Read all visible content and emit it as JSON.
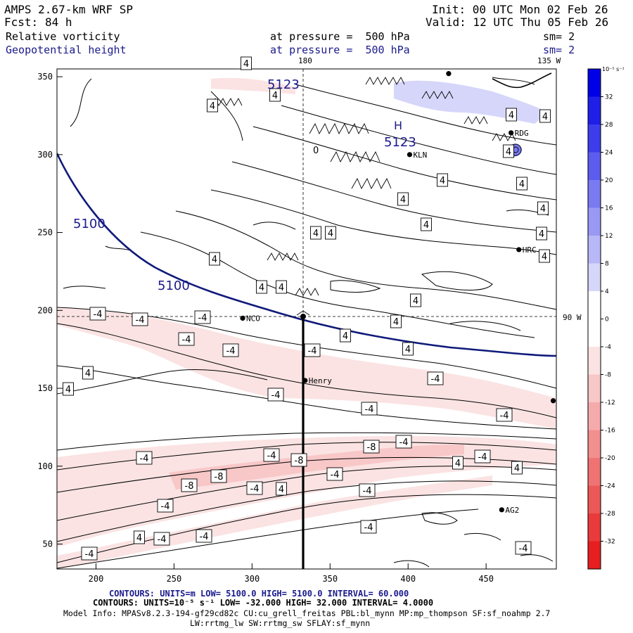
{
  "header": {
    "model": "AMPS 2.67-km WRF SP",
    "fcst_label": "Fcst:",
    "fcst_value": "84 h",
    "init": "Init: 00 UTC Mon 02 Feb 26",
    "valid": "Valid: 12 UTC Thu 05 Feb 26",
    "field1_name": "Relative vorticity",
    "field1_level": "at pressure =  500 hPa",
    "field1_smooth": "sm= 2",
    "field2_name": "Geopotential height",
    "field2_level": "at pressure =  500 hPa",
    "field2_smooth": "sm= 2"
  },
  "map": {
    "x_ticks": [
      "200",
      "250",
      "300",
      "350",
      "400",
      "450"
    ],
    "y_ticks": [
      "350",
      "300",
      "250",
      "200",
      "150",
      "100",
      "50"
    ],
    "meridian_labels": {
      "top_180": "180",
      "top_135w": "135 W",
      "right_90w": "90 W"
    },
    "stations": [
      {
        "name": "KLN",
        "x": 401,
        "y": 300
      },
      {
        "name": "RDG",
        "x": 466,
        "y": 314
      },
      {
        "name": "HRC",
        "x": 471,
        "y": 239
      },
      {
        "name": "NCO",
        "x": 294,
        "y": 195
      },
      {
        "name": "Henry",
        "x": 334,
        "y": 155
      },
      {
        "name": "AG2",
        "x": 460,
        "y": 72
      },
      {
        "name": "",
        "x": 426,
        "y": 352
      },
      {
        "name": "",
        "x": 493,
        "y": 142
      }
    ],
    "height_labels": [
      "5100",
      "5100",
      "5123",
      "5123"
    ],
    "height_high_marker": "H",
    "vorticity_zero_label": "0",
    "vort_boxes": [
      {
        "t": "4",
        "x": 350,
        "y": 90
      },
      {
        "t": "4",
        "x": 391,
        "y": 135
      },
      {
        "t": "4",
        "x": 302,
        "y": 150
      },
      {
        "t": "4",
        "x": 727,
        "y": 163
      },
      {
        "t": "4",
        "x": 775,
        "y": 165
      },
      {
        "t": "4",
        "x": 723,
        "y": 215
      },
      {
        "t": "4",
        "x": 629,
        "y": 256
      },
      {
        "t": "4",
        "x": 742,
        "y": 261
      },
      {
        "t": "4",
        "x": 573,
        "y": 283
      },
      {
        "t": "4",
        "x": 772,
        "y": 296
      },
      {
        "t": "4",
        "x": 606,
        "y": 319
      },
      {
        "t": "4",
        "x": 449,
        "y": 331
      },
      {
        "t": "4",
        "x": 470,
        "y": 331
      },
      {
        "t": "4",
        "x": 770,
        "y": 332
      },
      {
        "t": "4",
        "x": 305,
        "y": 368
      },
      {
        "t": "4",
        "x": 774,
        "y": 364
      },
      {
        "t": "4",
        "x": 372,
        "y": 408
      },
      {
        "t": "4",
        "x": 400,
        "y": 408
      },
      {
        "t": "4",
        "x": 591,
        "y": 427
      },
      {
        "t": "4",
        "x": 563,
        "y": 457
      },
      {
        "t": "4",
        "x": 491,
        "y": 477
      },
      {
        "t": "4",
        "x": 580,
        "y": 496
      },
      {
        "t": "4",
        "x": 125,
        "y": 530
      },
      {
        "t": "4",
        "x": 97,
        "y": 553
      },
      {
        "t": "4",
        "x": 651,
        "y": 658
      },
      {
        "t": "4",
        "x": 735,
        "y": 665
      },
      {
        "t": "4",
        "x": 400,
        "y": 695
      },
      {
        "t": "4",
        "x": 198,
        "y": 764
      },
      {
        "t": "-4",
        "x": 139,
        "y": 446
      },
      {
        "t": "-4",
        "x": 199,
        "y": 454
      },
      {
        "t": "-4",
        "x": 288,
        "y": 451
      },
      {
        "t": "-4",
        "x": 265,
        "y": 482
      },
      {
        "t": "-4",
        "x": 328,
        "y": 498
      },
      {
        "t": "-4",
        "x": 444,
        "y": 498
      },
      {
        "t": "-4",
        "x": 619,
        "y": 538
      },
      {
        "t": "-4",
        "x": 392,
        "y": 561
      },
      {
        "t": "-4",
        "x": 525,
        "y": 581
      },
      {
        "t": "-4",
        "x": 717,
        "y": 590
      },
      {
        "t": "-4",
        "x": 574,
        "y": 628
      },
      {
        "t": "-4",
        "x": 386,
        "y": 647
      },
      {
        "t": "-4",
        "x": 205,
        "y": 651
      },
      {
        "t": "-4",
        "x": 686,
        "y": 649
      },
      {
        "t": "-4",
        "x": 476,
        "y": 674
      },
      {
        "t": "-4",
        "x": 362,
        "y": 694
      },
      {
        "t": "-4",
        "x": 522,
        "y": 697
      },
      {
        "t": "-4",
        "x": 235,
        "y": 719
      },
      {
        "t": "-4",
        "x": 524,
        "y": 749
      },
      {
        "t": "-4",
        "x": 230,
        "y": 766
      },
      {
        "t": "-4",
        "x": 290,
        "y": 762
      },
      {
        "t": "-4",
        "x": 127,
        "y": 787
      },
      {
        "t": "-4",
        "x": 744,
        "y": 779
      },
      {
        "t": "-8",
        "x": 528,
        "y": 635
      },
      {
        "t": "-8",
        "x": 425,
        "y": 654
      },
      {
        "t": "-8",
        "x": 311,
        "y": 677
      },
      {
        "t": "-8",
        "x": 269,
        "y": 690
      }
    ]
  },
  "colorbar": {
    "unit_label": "10⁻⁵ s⁻¹",
    "levels": [
      36,
      32,
      28,
      24,
      20,
      16,
      12,
      8,
      4,
      0,
      -4,
      -8,
      -12,
      -16,
      -20,
      -24,
      -28,
      -32,
      -36
    ],
    "labels": [
      "32",
      "28",
      "24",
      "20",
      "16",
      "12",
      "8",
      "4",
      "0",
      "-4",
      "-8",
      "-12",
      "-16",
      "-20",
      "-24",
      "-28",
      "-32"
    ],
    "colors": [
      "#0000e6",
      "#1f1fe8",
      "#3d3deb",
      "#5c5cee",
      "#7a7af1",
      "#9999f4",
      "#b8b8f7",
      "#d6d6fa",
      "#ffffff",
      "#ffffff",
      "#fbe3e3",
      "#f8c7c7",
      "#f5abab",
      "#f28f8f",
      "#ef7373",
      "#ec5757",
      "#e93b3b",
      "#e61f1f"
    ]
  },
  "footer": {
    "contours1": "CONTOURS:  UNITS=m  LOW=  5100.0        HIGH=  5100.0        INTERVAL=   60.000",
    "contours2": "CONTOURS:  UNITS=10⁻⁵ s⁻¹  LOW= -32.000        HIGH=  32.000        INTERVAL=   4.0000",
    "model_info1": "Model Info: MPASv8.2.3-194-gf29cd82c CU:cu_grell_freitas PBL:bl_mynn MP:mp_thompson SF:sf_noahmp 2.7",
    "model_info2": "LW:rrtmg_lw SW:rrtmg_sw SFLAY:sf_mynn"
  },
  "colors": {
    "height_contour": "#0f1a7a",
    "vort_contour": "#000000",
    "text_blue": "#1a1a8c"
  }
}
